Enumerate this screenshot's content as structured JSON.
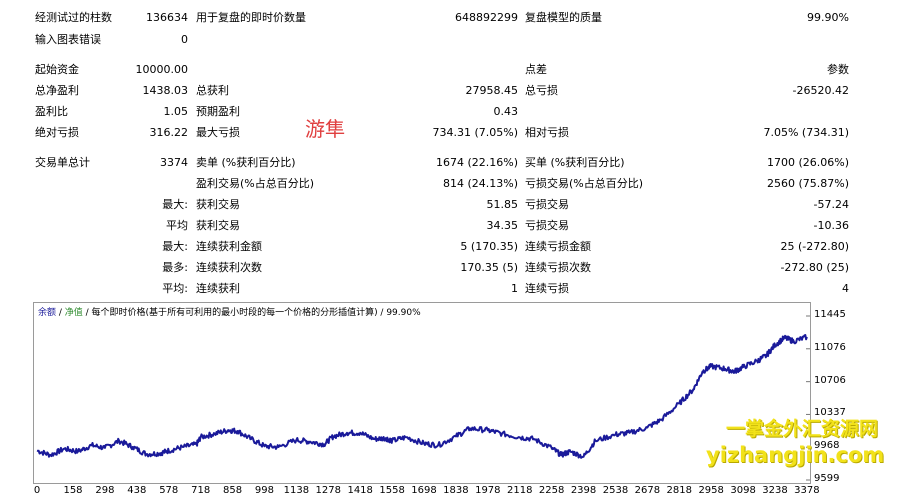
{
  "report": {
    "bars_label": "经测试过的柱数",
    "bars_value": "136634",
    "ticks_label": "用于复盘的即时价数量",
    "ticks_value": "648892299",
    "quality_label": "复盘模型的质量",
    "quality_value": "99.90%",
    "mismatch_label": "输入图表错误",
    "mismatch_value": "0",
    "deposit_label": "起始资金",
    "deposit_value": "10000.00",
    "spread_label": "点差",
    "spread_value": "参数",
    "net_label": "总净盈利",
    "net_value": "1438.03",
    "gross_profit_label": "总获利",
    "gross_profit_value": "27958.45",
    "gross_loss_label": "总亏损",
    "gross_loss_value": "-26520.42",
    "pf_label": "盈利比",
    "pf_value": "1.05",
    "expected_label": "预期盈利",
    "expected_value": "0.43",
    "abs_dd_label": "绝对亏损",
    "abs_dd_value": "316.22",
    "max_dd_label": "最大亏损",
    "max_dd_value": "734.31 (7.05%)",
    "rel_dd_label": "相对亏损",
    "rel_dd_value": "7.05% (734.31)",
    "total_trades_label": "交易单总计",
    "total_trades_value": "3374",
    "short_label": "卖单 (%获利百分比)",
    "short_value": "1674 (22.16%)",
    "long_label": "买单 (%获利百分比)",
    "long_value": "1700 (26.06%)",
    "profit_trades_label": "盈利交易(%占总百分比)",
    "profit_trades_value": "814 (24.13%)",
    "loss_trades_label": "亏损交易(%占总百分比)",
    "loss_trades_value": "2560 (75.87%)",
    "largest_label": "最大:",
    "largest_profit_label": "获利交易",
    "largest_profit_value": "51.85",
    "largest_loss_label": "亏损交易",
    "largest_loss_value": "-57.24",
    "average_label": "平均",
    "avg_profit_label": "获利交易",
    "avg_profit_value": "34.35",
    "avg_loss_label": "亏损交易",
    "avg_loss_value": "-10.36",
    "max_cons_label": "最大:",
    "max_cons_wins_label": "连续获利金额",
    "max_cons_wins_value": "5 (170.35)",
    "max_cons_losses_label": "连续亏损金额",
    "max_cons_losses_value": "25 (-272.80)",
    "maximal_label": "最多:",
    "maximal_wins_label": "连续获利次数",
    "maximal_wins_value": "170.35 (5)",
    "maximal_losses_label": "连续亏损次数",
    "maximal_losses_value": "-272.80 (25)",
    "avg_cons_label": "平均:",
    "avg_cons_wins_label": "连续获利",
    "avg_cons_wins_value": "1",
    "avg_cons_losses_label": "连续亏损",
    "avg_cons_losses_value": "4"
  },
  "stamp_text": "游隼",
  "watermark": {
    "line1": "一掌金外汇资源网",
    "line2": "yizhangjin.com"
  },
  "chart_header": {
    "balance": "余额",
    "sep1": " / ",
    "equity": "净值",
    "rest": " / 每个即时价格(基于所有可利用的最小时段的每一个价格的分形插值计算) / 99.90%"
  },
  "colors": {
    "balance_line": "#1a1a9a",
    "equity_label": "#2e8b2e"
  },
  "chart_data": {
    "type": "line",
    "x_ticks": [
      "0",
      "158",
      "298",
      "438",
      "578",
      "718",
      "858",
      "998",
      "1138",
      "1278",
      "1418",
      "1558",
      "1698",
      "1838",
      "1978",
      "2118",
      "2258",
      "2398",
      "2538",
      "2678",
      "2818",
      "2958",
      "3098",
      "3238",
      "3378"
    ],
    "y_ticks": [
      "11445",
      "11076",
      "10706",
      "10337",
      "9968",
      "9599"
    ],
    "ylim": [
      9599,
      11445
    ],
    "xlim": [
      0,
      3374
    ],
    "series": [
      {
        "values": [
          [
            0,
            9930
          ],
          [
            60,
            9880
          ],
          [
            120,
            9950
          ],
          [
            180,
            9920
          ],
          [
            240,
            9990
          ],
          [
            298,
            9960
          ],
          [
            360,
            10040
          ],
          [
            420,
            9970
          ],
          [
            480,
            9890
          ],
          [
            540,
            9900
          ],
          [
            578,
            9930
          ],
          [
            640,
            9970
          ],
          [
            700,
            10000
          ],
          [
            718,
            10080
          ],
          [
            780,
            10120
          ],
          [
            840,
            10160
          ],
          [
            880,
            10150
          ],
          [
            940,
            10060
          ],
          [
            998,
            9980
          ],
          [
            1060,
            9970
          ],
          [
            1138,
            10050
          ],
          [
            1200,
            10030
          ],
          [
            1260,
            10000
          ],
          [
            1300,
            10090
          ],
          [
            1360,
            10130
          ],
          [
            1418,
            10130
          ],
          [
            1480,
            10060
          ],
          [
            1530,
            10070
          ],
          [
            1558,
            10040
          ],
          [
            1620,
            10080
          ],
          [
            1698,
            10010
          ],
          [
            1760,
            9990
          ],
          [
            1838,
            10090
          ],
          [
            1900,
            10180
          ],
          [
            1978,
            10160
          ],
          [
            2040,
            10120
          ],
          [
            2118,
            10080
          ],
          [
            2180,
            10060
          ],
          [
            2258,
            9960
          ],
          [
            2300,
            9880
          ],
          [
            2340,
            9920
          ],
          [
            2398,
            9860
          ],
          [
            2450,
            10040
          ],
          [
            2538,
            10110
          ],
          [
            2600,
            10130
          ],
          [
            2678,
            10190
          ],
          [
            2740,
            10280
          ],
          [
            2818,
            10460
          ],
          [
            2880,
            10620
          ],
          [
            2920,
            10820
          ],
          [
            2958,
            10880
          ],
          [
            3020,
            10850
          ],
          [
            3060,
            10820
          ],
          [
            3098,
            10870
          ],
          [
            3160,
            10940
          ],
          [
            3200,
            11000
          ],
          [
            3238,
            11120
          ],
          [
            3280,
            11200
          ],
          [
            3320,
            11160
          ],
          [
            3378,
            11210
          ]
        ]
      }
    ]
  }
}
